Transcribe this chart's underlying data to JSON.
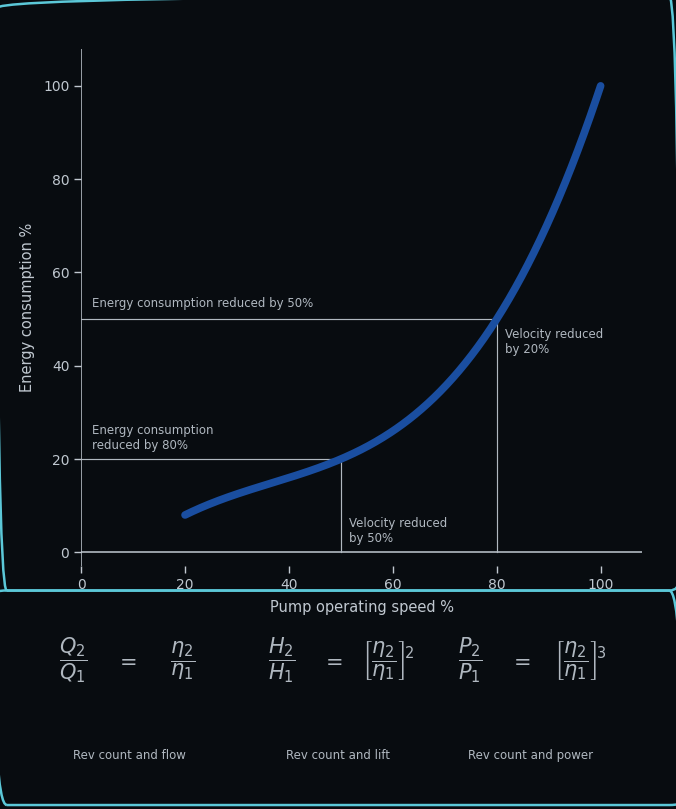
{
  "bg_color": "#080c10",
  "panel_edge_color": "#5bc8d8",
  "curve_color": "#1a4ea0",
  "curve_linewidth": 5.5,
  "annot_line_color": "#b0b8c0",
  "annot_text_color": "#b0b8c0",
  "axis_text_color": "#c0c8d0",
  "xlabel": "Pump operating speed %",
  "ylabel": "Energy consumption %",
  "xlim": [
    0,
    108
  ],
  "ylim": [
    -3,
    108
  ],
  "xticks": [
    0,
    20,
    40,
    60,
    80,
    100
  ],
  "yticks": [
    0,
    20,
    40,
    60,
    80,
    100
  ],
  "pt1_x": 50,
  "pt1_y": 20,
  "pt2_x": 80,
  "pt2_y": 50,
  "curve_start_x": 20,
  "curve_start_y": 8,
  "formula_text_color": "#b0b8c0",
  "formula_fontsize": 15,
  "label_fontsize": 8.5,
  "axis_fontsize": 10.5,
  "tick_fontsize": 10
}
